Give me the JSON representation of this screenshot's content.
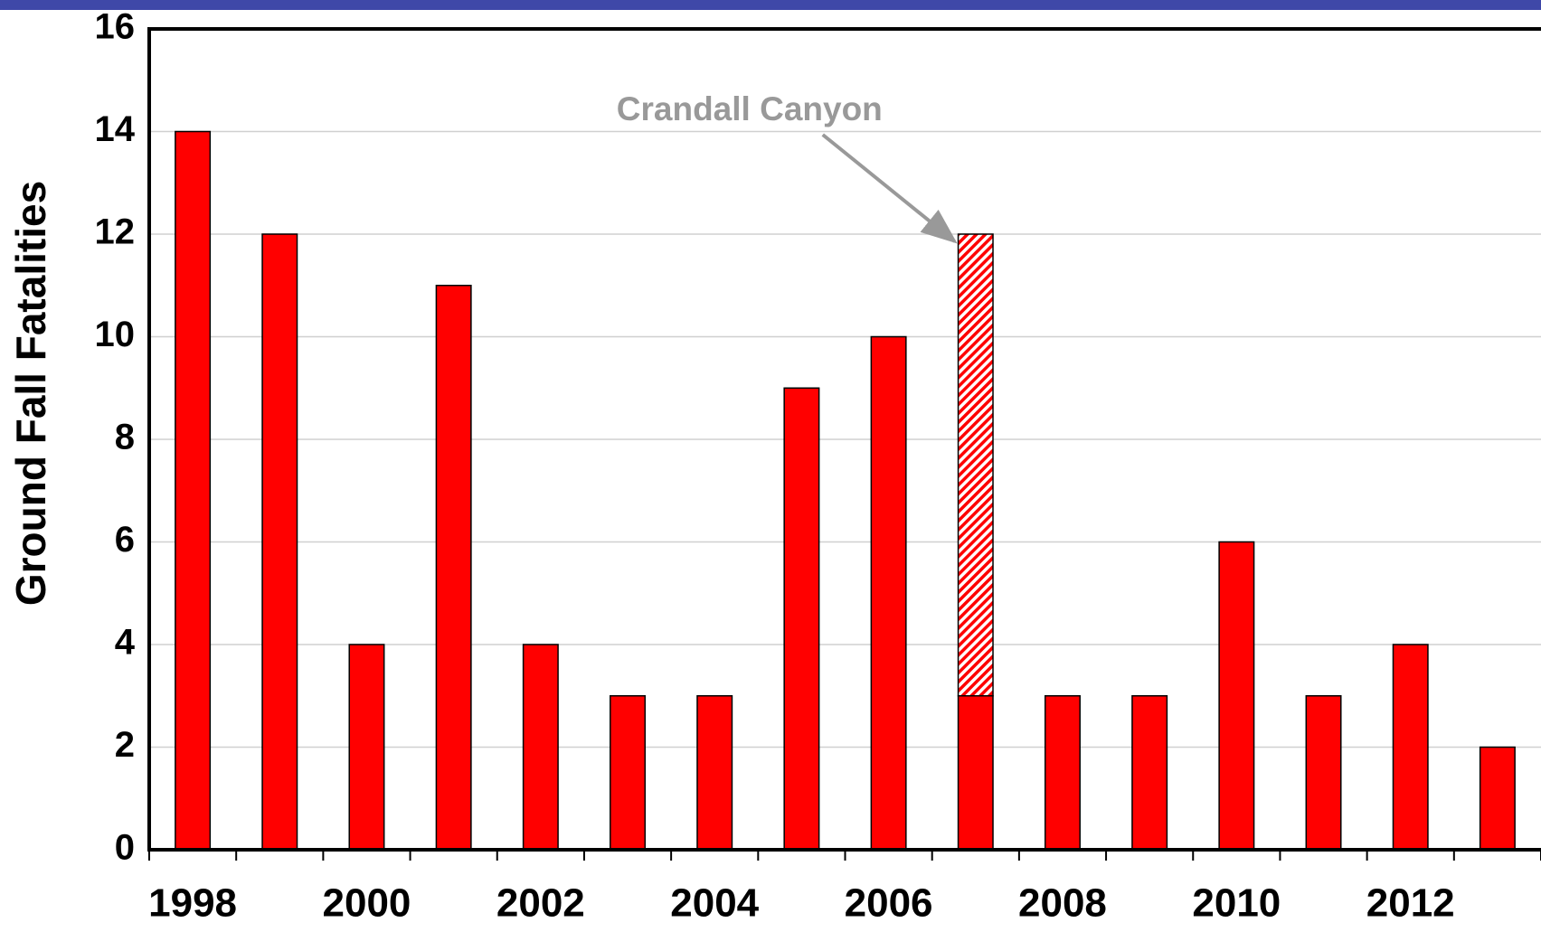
{
  "chart_data": {
    "type": "bar",
    "ylabel": "Ground Fall Fatalities",
    "categories": [
      "1998",
      null,
      "2000",
      null,
      "2002",
      null,
      "2004",
      null,
      "2006",
      null,
      "2008",
      null,
      "2010",
      null,
      "2012",
      null
    ],
    "series": [
      {
        "color": "#ff0000",
        "values": [
          14,
          12,
          4,
          11,
          4,
          3,
          3,
          9,
          10,
          3,
          3,
          3,
          6,
          3,
          4,
          2
        ]
      },
      {
        "color": "#ff0000",
        "pattern": "hatch",
        "annotation": "Crandall Canyon",
        "values": [
          null,
          null,
          null,
          null,
          null,
          null,
          null,
          null,
          null,
          9,
          null,
          null,
          null,
          null,
          null,
          null
        ]
      }
    ],
    "stacked": true,
    "ylim": [
      0,
      16
    ],
    "yticks": [
      0,
      2,
      4,
      6,
      8,
      10,
      12,
      14,
      16
    ],
    "grid": true
  }
}
